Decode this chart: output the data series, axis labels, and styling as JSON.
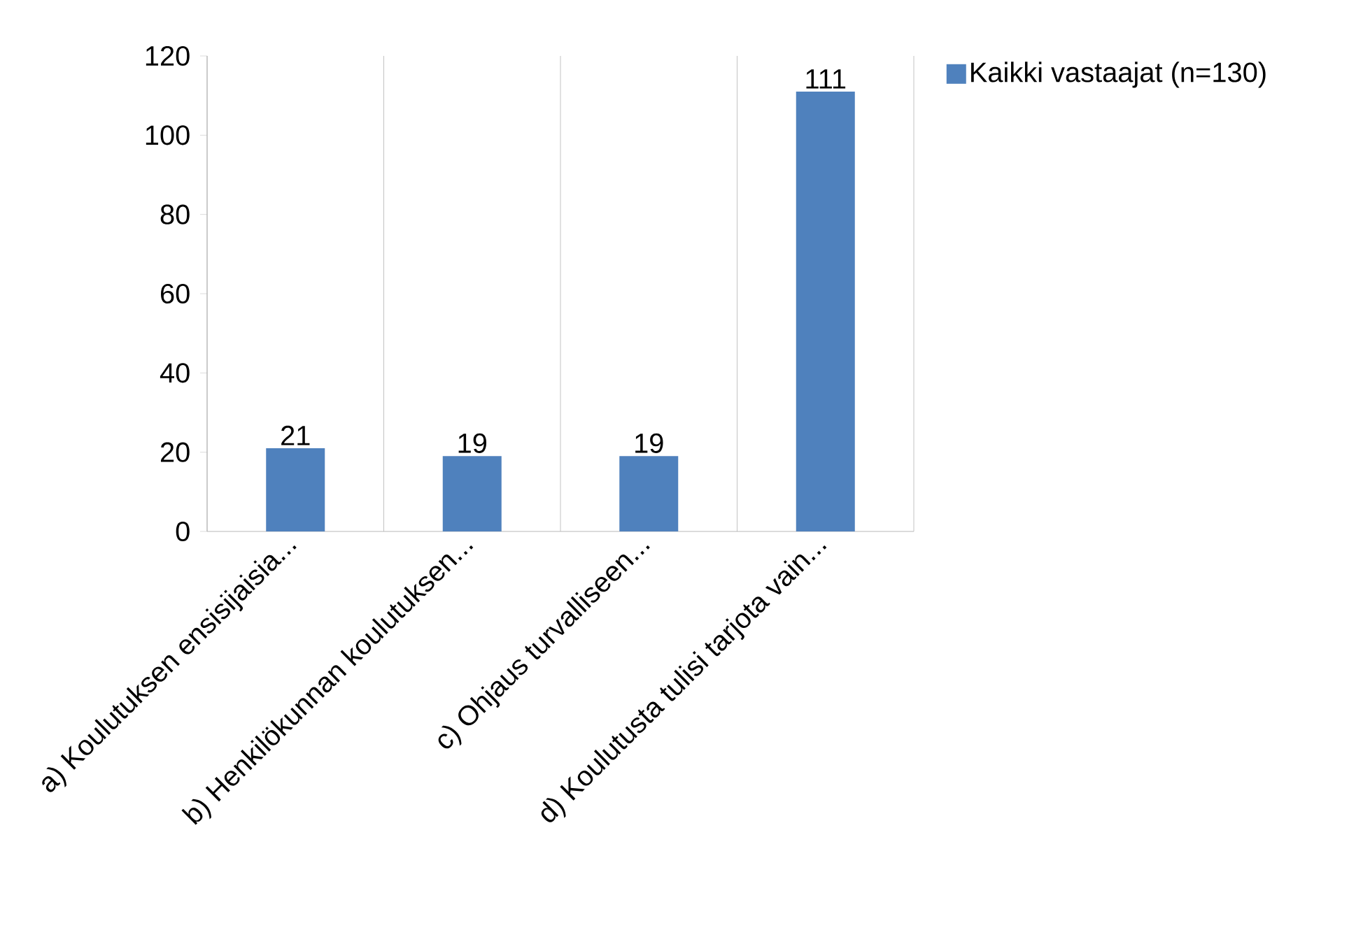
{
  "chart_data": {
    "type": "bar",
    "categories": [
      "a) Koulutuksen ensisijaisia...",
      "b) Henkilökunnan koulutuksen...",
      "c) Ohjaus turvalliseen...",
      "d) Koulutusta tulisi tarjota vain..."
    ],
    "series": [
      {
        "name": "Kaikki vastaajat (n=130)",
        "color": "#4f81bd",
        "values": [
          21,
          19,
          19,
          111
        ]
      }
    ],
    "ylim": [
      0,
      120
    ],
    "yticks": [
      0,
      20,
      40,
      60,
      80,
      100,
      120
    ],
    "grid": "x",
    "legend": "top right",
    "data_labels": true
  }
}
